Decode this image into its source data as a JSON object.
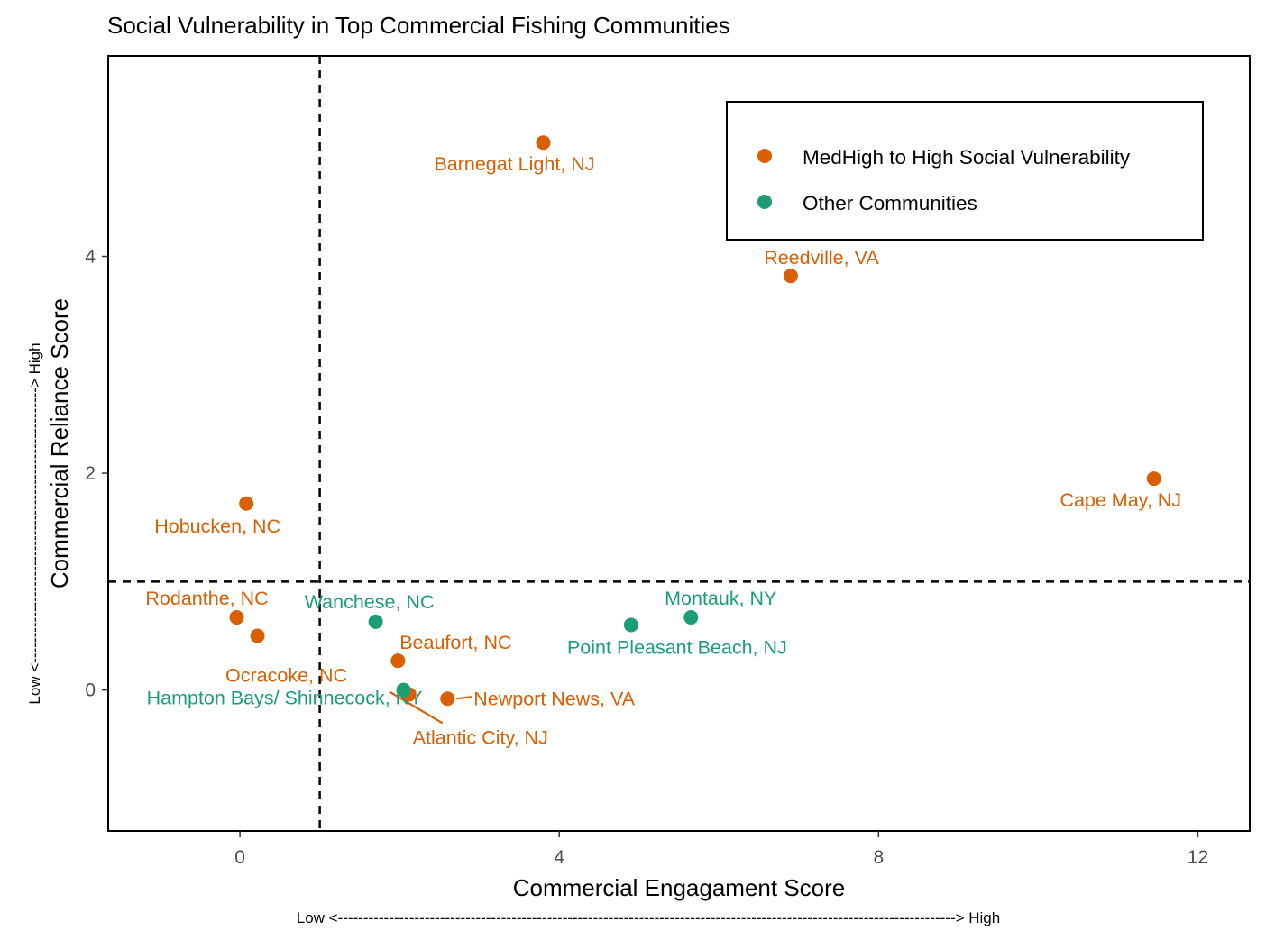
{
  "chart_data": {
    "type": "scatter",
    "title": "Social Vulnerability in Top Commercial Fishing Communities",
    "xlabel": "Commercial Engagament Score",
    "ylabel": "Commercial Reliance Score",
    "x_scale_note": "Low <-------------------------------------------------------------------------------------------------------------------------> High",
    "y_scale_note": "Low <------------------------------------------------------> High",
    "xlim": [
      -1.65,
      12.65
    ],
    "ylim": [
      -1.3,
      5.85
    ],
    "x_ticks": [
      0,
      4,
      8,
      12
    ],
    "y_ticks": [
      0,
      2,
      4
    ],
    "reference_lines": {
      "x": 1,
      "y": 1,
      "style": "dashed"
    },
    "grid": false,
    "legend_position": "top-right",
    "series": [
      {
        "name": "MedHigh to High Social Vulnerability",
        "color": "#D95F02",
        "points": [
          {
            "label": "Barnegat Light, NJ",
            "x": 3.8,
            "y": 5.05
          },
          {
            "label": "Reedville, VA",
            "x": 6.9,
            "y": 3.82
          },
          {
            "label": "Cape May, NJ",
            "x": 11.45,
            "y": 1.95
          },
          {
            "label": "Hobucken, NC",
            "x": 0.08,
            "y": 1.72
          },
          {
            "label": "Rodanthe, NC",
            "x": -0.04,
            "y": 0.67
          },
          {
            "label": "Ocracoke, NC",
            "x": 0.22,
            "y": 0.5
          },
          {
            "label": "Beaufort, NC",
            "x": 1.98,
            "y": 0.27
          },
          {
            "label": "Newport News, VA",
            "x": 2.6,
            "y": -0.08
          },
          {
            "label": "Atlantic City, NJ",
            "x": 2.12,
            "y": -0.04
          }
        ]
      },
      {
        "name": "Other Communities",
        "color": "#1B9E77",
        "points": [
          {
            "label": "Wanchese, NC",
            "x": 1.7,
            "y": 0.63
          },
          {
            "label": "Point Pleasant Beach, NJ",
            "x": 4.9,
            "y": 0.6
          },
          {
            "label": "Montauk, NY",
            "x": 5.65,
            "y": 0.67
          },
          {
            "label": "Hampton Bays/ Shinnecock, NY",
            "x": 2.05,
            "y": 0.0
          }
        ]
      }
    ]
  }
}
